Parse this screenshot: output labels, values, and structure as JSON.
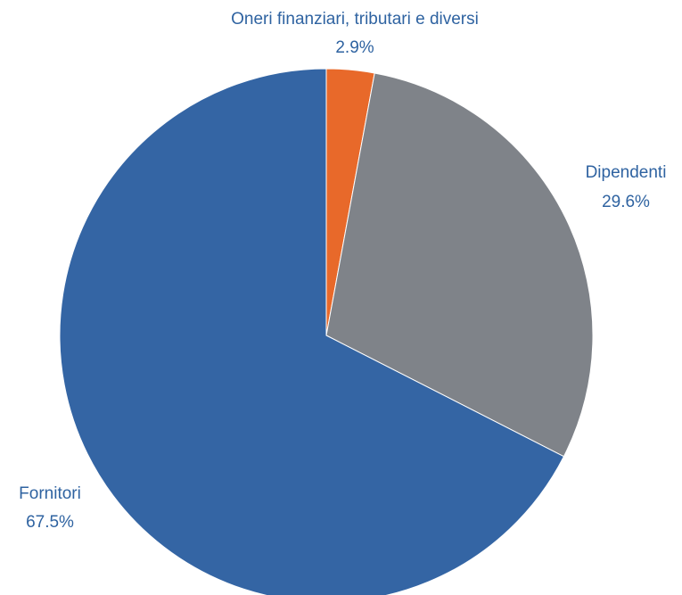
{
  "chart_data": {
    "type": "pie",
    "start_angle": "12 o'clock",
    "direction": "clockwise",
    "slices": [
      {
        "label": "Oneri finanziari, tributari e diversi",
        "value": 2.9,
        "value_label": "2.9%",
        "color": "#e8692a"
      },
      {
        "label": "Dipendenti",
        "value": 29.6,
        "value_label": "29.6%",
        "color": "#7f8389"
      },
      {
        "label": "Fornitori",
        "value": 67.5,
        "value_label": "67.5%",
        "color": "#3465a4"
      }
    ],
    "label_color": "#2f63a1"
  }
}
